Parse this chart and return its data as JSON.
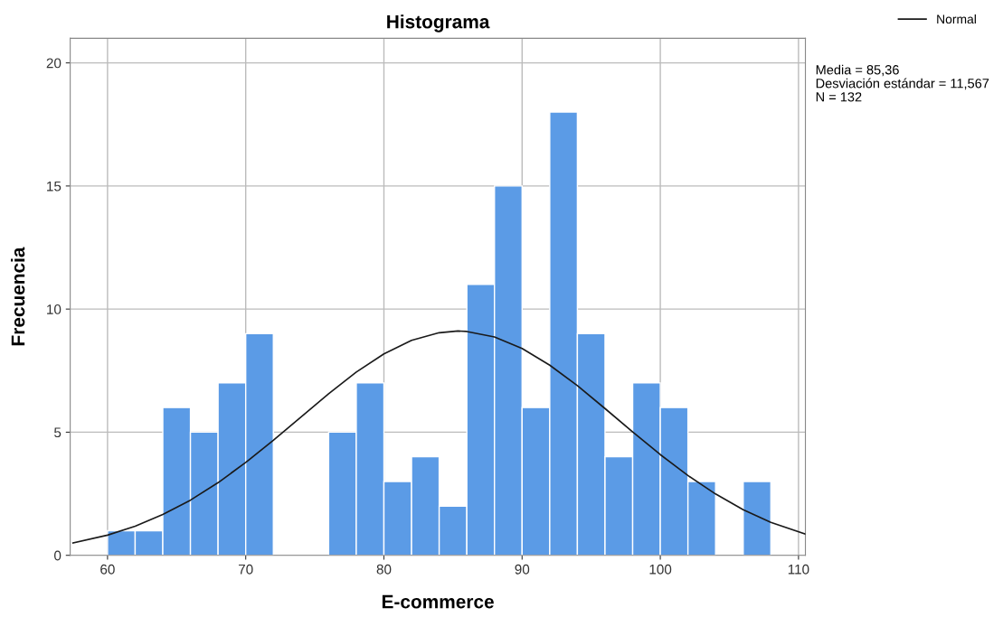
{
  "chart_data": {
    "type": "histogram",
    "title": "Histograma",
    "xlabel": "E-commerce",
    "ylabel": "Frecuencia",
    "bins": [
      60,
      62,
      64,
      66,
      68,
      70,
      72,
      74,
      76,
      78,
      80,
      82,
      84,
      86,
      88,
      90,
      92,
      94,
      96,
      98,
      100,
      102,
      104,
      106,
      108
    ],
    "values": [
      1,
      1,
      6,
      5,
      7,
      9,
      0,
      0,
      5,
      7,
      3,
      4,
      2,
      11,
      15,
      6,
      18,
      9,
      4,
      7,
      6,
      3,
      0,
      3
    ],
    "color": "#5b9be6",
    "series": [
      {
        "name": "Normal",
        "type": "line",
        "color": "#1a1a1a",
        "x": [
          57.5,
          60,
          62,
          64,
          66,
          68,
          70,
          72,
          74,
          76,
          78,
          80,
          82,
          84,
          85.36,
          86,
          88,
          90,
          92,
          94,
          96,
          98,
          100,
          102,
          104,
          106,
          108,
          110.5
        ],
        "values": [
          0.5,
          0.82,
          1.18,
          1.66,
          2.24,
          2.95,
          3.77,
          4.67,
          5.62,
          6.56,
          7.44,
          8.18,
          8.73,
          9.04,
          9.11,
          9.09,
          8.87,
          8.4,
          7.72,
          6.89,
          5.96,
          5.01,
          4.09,
          3.24,
          2.49,
          1.85,
          1.34,
          0.86
        ]
      }
    ],
    "xlim": [
      57.3,
      110.5
    ],
    "ylim": [
      0,
      21
    ],
    "xticks": [
      60,
      70,
      80,
      90,
      100,
      110
    ],
    "yticks": [
      0,
      5,
      10,
      15,
      20
    ],
    "grid": true,
    "legend": "top right",
    "annotations": [
      "Media = 85,36",
      "Desviación estándar = 11,567",
      "N = 132"
    ]
  }
}
